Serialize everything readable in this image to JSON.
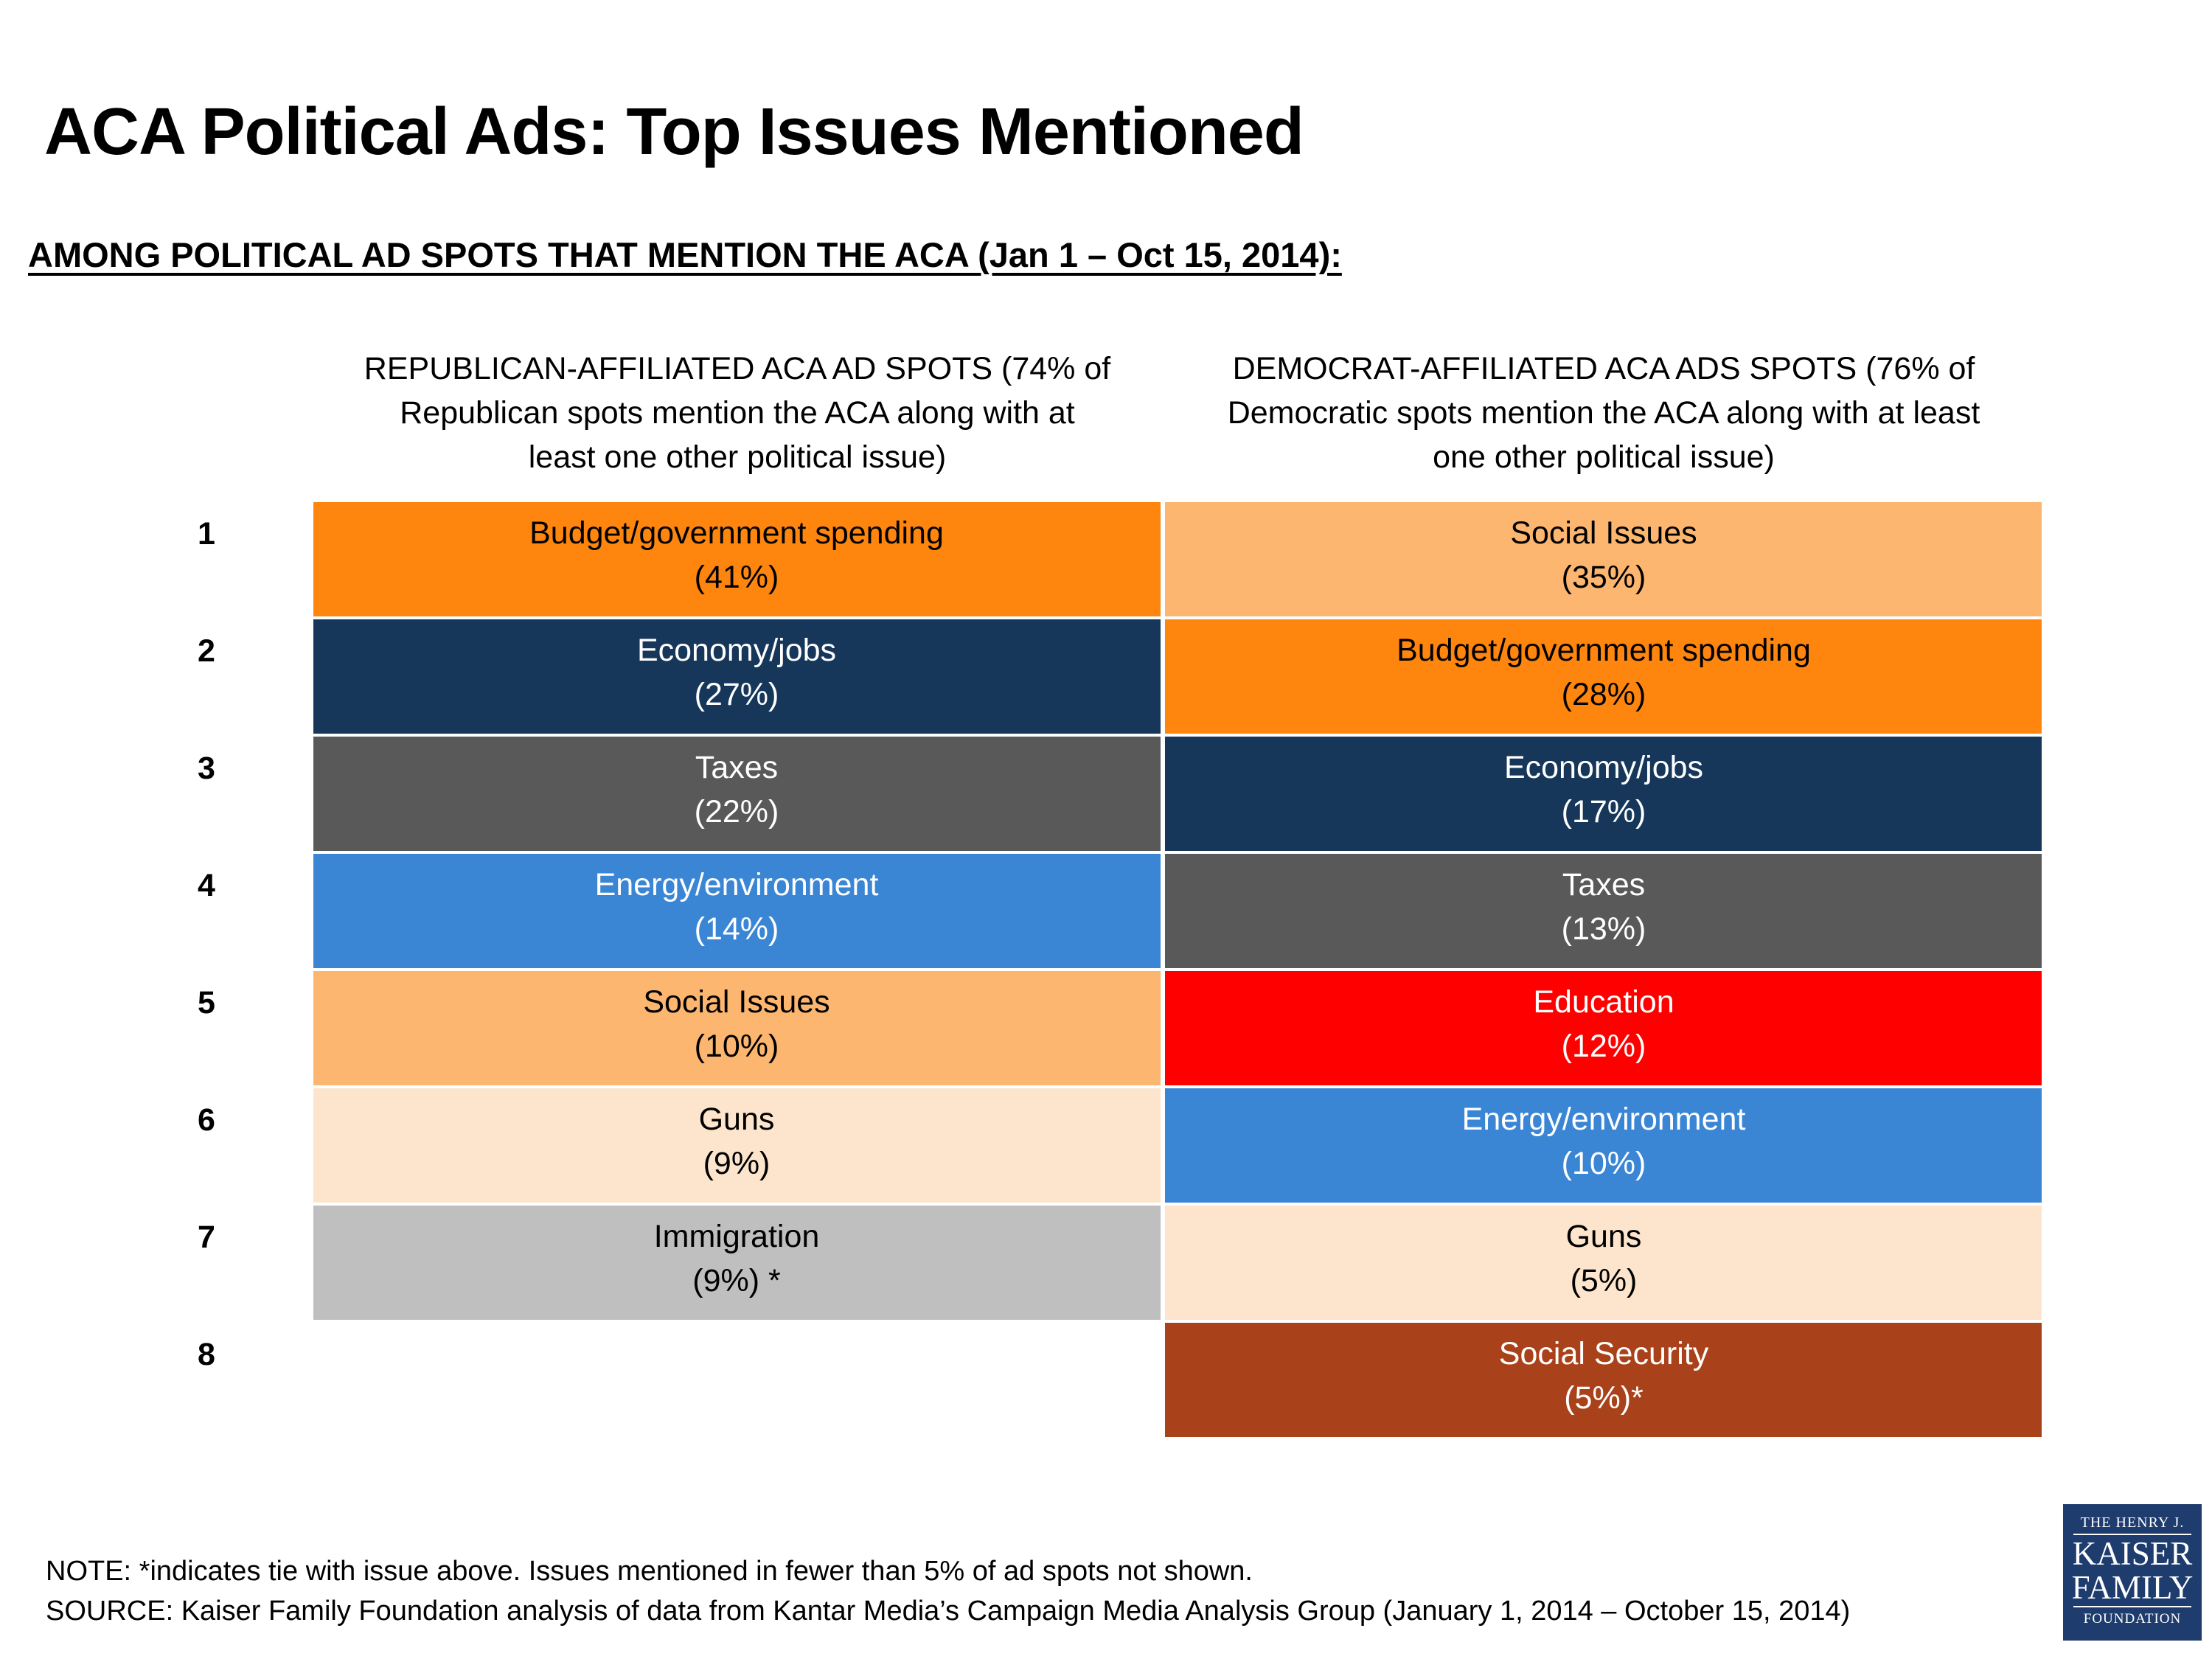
{
  "page_title": "ACA Political Ads: Top Issues Mentioned",
  "subtitle": "AMONG POLITICAL AD SPOTS THAT MENTION THE ACA (Jan 1 – Oct 15, 2014):",
  "column_headers": {
    "republican": [
      "REPUBLICAN-AFFILIATED ACA AD SPOTS (74% of",
      "Republican spots  mention the ACA along with at",
      "least one other political issue)"
    ],
    "democrat": [
      "DEMOCRAT-AFFILIATED ACA ADS SPOTS (76% of",
      "Democratic spots mention the ACA along with at least",
      "one other political issue)"
    ]
  },
  "ranks": [
    "1",
    "2",
    "3",
    "4",
    "5",
    "6",
    "7",
    "8"
  ],
  "chart_data": {
    "type": "table",
    "title": "ACA Political Ads: Top Issues Mentioned",
    "columns": [
      "Republican-affiliated ACA ad spots",
      "Democrat-affiliated ACA ads spots"
    ],
    "republican": [
      {
        "issue": "Budget/government spending",
        "value_label": "(41%)",
        "value": 41,
        "color": "#fe860f"
      },
      {
        "issue": "Economy/jobs",
        "value_label": "(27%)",
        "value": 27,
        "color": "#16365a"
      },
      {
        "issue": "Taxes",
        "value_label": "(22%)",
        "value": 22,
        "color": "#595959"
      },
      {
        "issue": "Energy/environment",
        "value_label": "(14%)",
        "value": 14,
        "color": "#3a86d5"
      },
      {
        "issue": "Social Issues",
        "value_label": "(10%)",
        "value": 10,
        "color": "#fdb66f"
      },
      {
        "issue": "Guns",
        "value_label": "(9%)",
        "value": 9,
        "color": "#fde5cd"
      },
      {
        "issue": "Immigration",
        "value_label": "(9%) *",
        "value": 9,
        "color": "#bfbfbf"
      }
    ],
    "democrat": [
      {
        "issue": "Social Issues",
        "value_label": "(35%)",
        "value": 35,
        "color": "#fdb66f"
      },
      {
        "issue": "Budget/government spending",
        "value_label": "(28%)",
        "value": 28,
        "color": "#fe860f"
      },
      {
        "issue": "Economy/jobs",
        "value_label": "(17%)",
        "value": 17,
        "color": "#16365a"
      },
      {
        "issue": "Taxes",
        "value_label": "(13%)",
        "value": 13,
        "color": "#595959"
      },
      {
        "issue": "Education",
        "value_label": "(12%)",
        "value": 12,
        "color": "#fe0000"
      },
      {
        "issue": "Energy/environment",
        "value_label": "(10%)",
        "value": 10,
        "color": "#3a86d5"
      },
      {
        "issue": "Guns",
        "value_label": "(5%)",
        "value": 5,
        "color": "#fde5cd"
      },
      {
        "issue": "Social Security",
        "value_label": "(5%)*",
        "value": 5,
        "color": "#a9421a"
      }
    ],
    "text_colors": {
      "light": "#ffffff",
      "dark": "#000000"
    }
  },
  "footer": {
    "note": "NOTE: *indicates tie with issue above.  Issues mentioned in fewer than 5% of ad spots not shown.",
    "source": "SOURCE: Kaiser Family Foundation analysis of data from Kantar Media’s Campaign Media Analysis Group (January 1, 2014 – October 15, 2014)"
  },
  "logo": {
    "line1": "THE HENRY J.",
    "line2": "KAISER",
    "line3": "FAMILY",
    "line4": "FOUNDATION"
  }
}
